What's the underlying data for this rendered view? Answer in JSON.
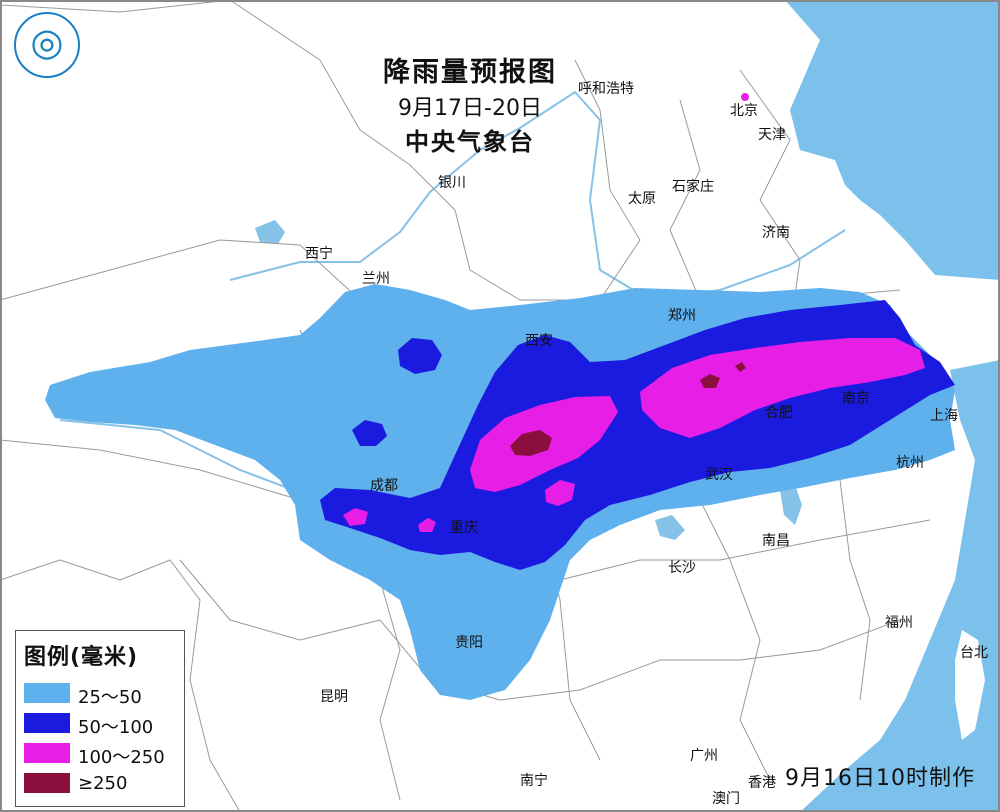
{
  "map": {
    "title": "降雨量预报图",
    "period": "9月17日-20日",
    "agency": "中央气象台",
    "issued": "9月16日10时制作",
    "logo_icon": "cma-logo-icon"
  },
  "colors": {
    "ocean": "#7cc0ec",
    "land": "#ffffff",
    "border": "#9a9a9a",
    "river": "#86c1e8",
    "c25_50": "#5fb1ee",
    "c50_100": "#1b1be0",
    "c100_250": "#e61ee6",
    "c250": "#8a0f3e"
  },
  "legend": {
    "title": "图例(毫米)",
    "items": [
      {
        "label": "25～50",
        "color": "#5fb1ee"
      },
      {
        "label": "50～100",
        "color": "#1b1be0"
      },
      {
        "label": "100～250",
        "color": "#e61ee6"
      },
      {
        "label": "≥250",
        "color": "#8a0f3e"
      }
    ]
  },
  "cities": {
    "huhehaote": "呼和浩特",
    "beijing": "北京",
    "tianjin": "天津",
    "yinchuan": "银川",
    "taiyuan": "太原",
    "shijiazhuang": "石家庄",
    "jinan": "济南",
    "xining": "西宁",
    "lanzhou": "兰州",
    "zhengzhou": "郑州",
    "xian": "西安",
    "hefei": "合肥",
    "nanjing": "南京",
    "shanghai": "上海",
    "hangzhou": "杭州",
    "chengdu": "成都",
    "chongqing": "重庆",
    "wuhan": "武汉",
    "changsha": "长沙",
    "nanchang": "南昌",
    "fuzhou": "福州",
    "taibei": "台北",
    "guiyang": "贵阳",
    "kunming": "昆明",
    "guangzhou": "广州",
    "xianggang": "香港",
    "aomen": "澳门",
    "nanning": "南宁"
  }
}
